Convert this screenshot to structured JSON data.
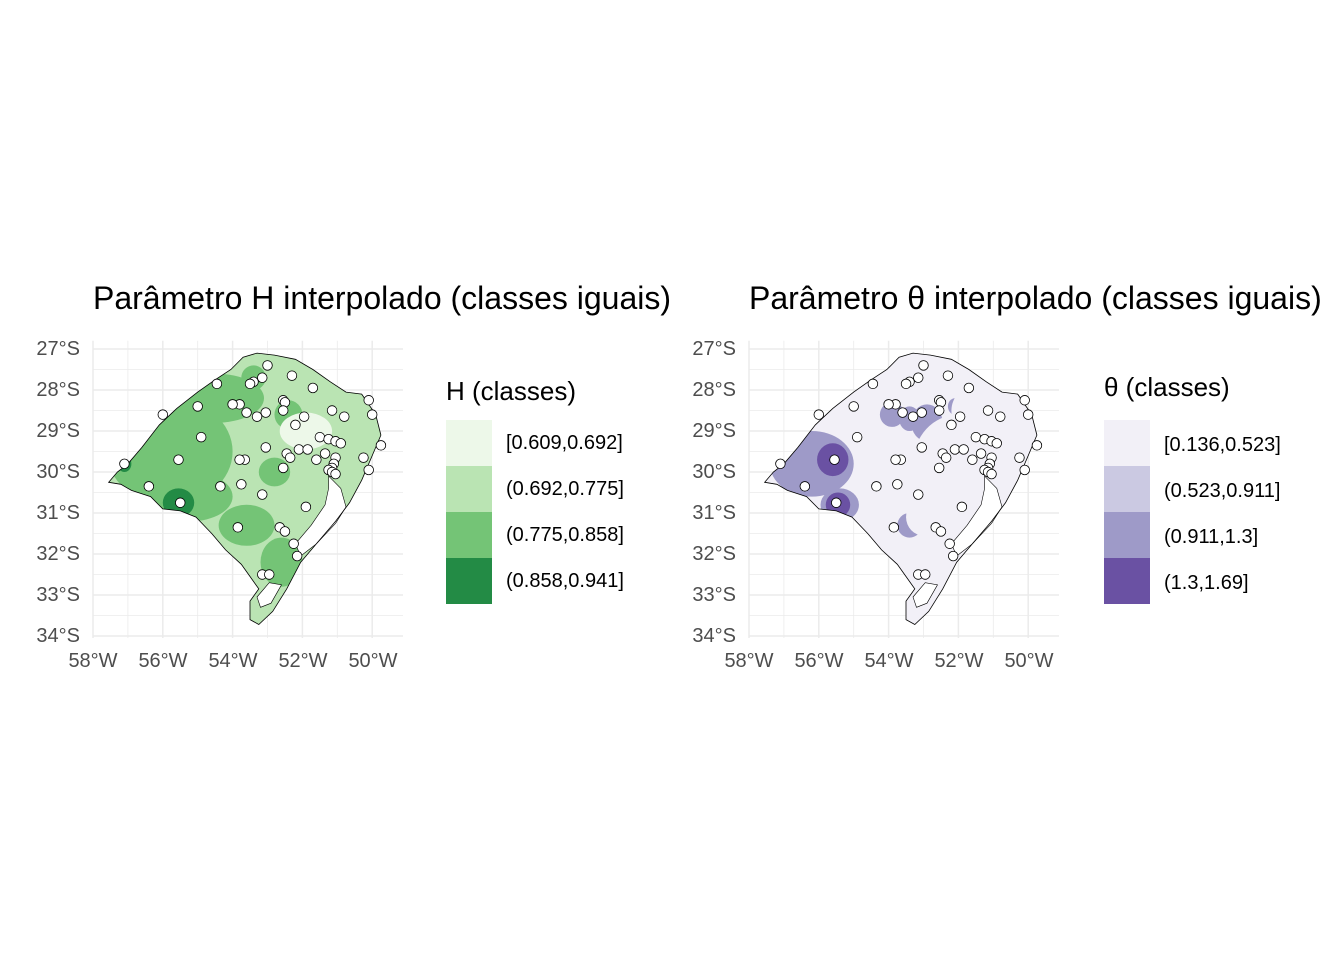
{
  "panels": [
    {
      "id": "h",
      "title": "Parâmetro H interpolado (classes iguais)",
      "legend_title": "H (classes)",
      "classes": [
        {
          "label": "[0.609,0.692]",
          "color": "#edf8e9"
        },
        {
          "label": "(0.692,0.775]",
          "color": "#bae4b3"
        },
        {
          "label": "(0.775,0.858]",
          "color": "#74c476"
        },
        {
          "label": "(0.858,0.941]",
          "color": "#238b45"
        }
      ]
    },
    {
      "id": "t",
      "title": "Parâmetro θ interpolado (classes iguais)",
      "legend_title": "θ (classes)",
      "classes": [
        {
          "label": "[0.136,0.523]",
          "color": "#f2f0f7"
        },
        {
          "label": "(0.523,0.911]",
          "color": "#cbc9e2"
        },
        {
          "label": "(0.911,1.3]",
          "color": "#9e9ac8"
        },
        {
          "label": "(1.3,1.69]",
          "color": "#6a51a3"
        }
      ]
    }
  ],
  "axes": {
    "y_ticks": [
      "27°S",
      "28°S",
      "29°S",
      "30°S",
      "31°S",
      "32°S",
      "33°S",
      "34°S"
    ],
    "x_ticks": [
      "58°W",
      "56°W",
      "54°W",
      "52°W",
      "50°W"
    ]
  },
  "stations": [
    [
      -53.0,
      -27.4
    ],
    [
      -53.15,
      -27.7
    ],
    [
      -52.3,
      -27.65
    ],
    [
      -53.4,
      -27.8
    ],
    [
      -53.5,
      -27.85
    ],
    [
      -51.7,
      -27.95
    ],
    [
      -50.1,
      -28.25
    ],
    [
      -54.45,
      -27.85
    ],
    [
      -53.8,
      -28.35
    ],
    [
      -52.55,
      -28.25
    ],
    [
      -52.5,
      -28.3
    ],
    [
      -55.0,
      -28.4
    ],
    [
      -54.0,
      -28.35
    ],
    [
      -53.6,
      -28.55
    ],
    [
      -53.05,
      -28.55
    ],
    [
      -52.55,
      -28.5
    ],
    [
      -51.15,
      -28.5
    ],
    [
      -50.8,
      -28.65
    ],
    [
      -50.0,
      -28.6
    ],
    [
      -56.0,
      -28.6
    ],
    [
      -51.95,
      -28.65
    ],
    [
      -52.2,
      -28.85
    ],
    [
      -53.3,
      -28.65
    ],
    [
      -51.5,
      -29.15
    ],
    [
      -51.25,
      -29.2
    ],
    [
      -51.05,
      -29.25
    ],
    [
      -50.9,
      -29.3
    ],
    [
      -49.75,
      -29.35
    ],
    [
      -54.9,
      -29.15
    ],
    [
      -53.05,
      -29.4
    ],
    [
      -52.1,
      -29.45
    ],
    [
      -51.85,
      -29.45
    ],
    [
      -51.35,
      -29.55
    ],
    [
      -52.45,
      -29.55
    ],
    [
      -52.35,
      -29.65
    ],
    [
      -52.55,
      -29.9
    ],
    [
      -51.05,
      -29.65
    ],
    [
      -51.1,
      -29.8
    ],
    [
      -51.15,
      -29.9
    ],
    [
      -51.25,
      -29.95
    ],
    [
      -51.15,
      -30.0
    ],
    [
      -51.05,
      -30.05
    ],
    [
      -50.25,
      -29.65
    ],
    [
      -50.1,
      -29.95
    ],
    [
      -53.65,
      -29.7
    ],
    [
      -53.8,
      -29.7
    ],
    [
      -55.55,
      -29.7
    ],
    [
      -51.6,
      -29.7
    ],
    [
      -57.1,
      -29.8
    ],
    [
      -53.75,
      -30.3
    ],
    [
      -54.35,
      -30.35
    ],
    [
      -53.15,
      -30.55
    ],
    [
      -56.4,
      -30.35
    ],
    [
      -55.5,
      -30.75
    ],
    [
      -51.9,
      -30.85
    ],
    [
      -53.85,
      -31.35
    ],
    [
      -52.65,
      -31.35
    ],
    [
      -52.5,
      -31.45
    ],
    [
      -52.25,
      -31.75
    ],
    [
      -52.15,
      -32.05
    ],
    [
      -53.15,
      -32.5
    ],
    [
      -52.95,
      -32.5
    ]
  ]
}
